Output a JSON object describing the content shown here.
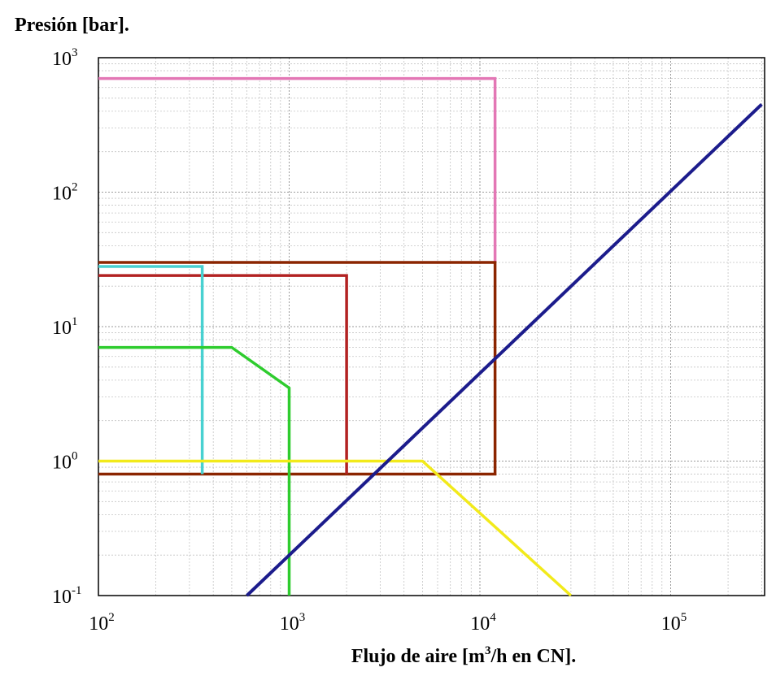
{
  "chart_data": {
    "type": "line",
    "ylabel": "Presión [bar].",
    "xlabel": "Flujo de aire [m3/h en CN].",
    "xscale": "log",
    "yscale": "log",
    "xlim": [
      100,
      300000
    ],
    "ylim": [
      0.1,
      1000
    ],
    "grid": true,
    "x_ticks": [
      {
        "base": "10",
        "exp": "2",
        "value": 100
      },
      {
        "base": "10",
        "exp": "3",
        "value": 1000
      },
      {
        "base": "10",
        "exp": "4",
        "value": 10000
      },
      {
        "base": "10",
        "exp": "5",
        "value": 100000
      }
    ],
    "y_ticks": [
      {
        "base": "10",
        "exp": "-1",
        "value": 0.1
      },
      {
        "base": "10",
        "exp": "0",
        "value": 1
      },
      {
        "base": "10",
        "exp": "1",
        "value": 10
      },
      {
        "base": "10",
        "exp": "2",
        "value": 100
      },
      {
        "base": "10",
        "exp": "3",
        "value": 1000
      }
    ],
    "series": [
      {
        "color": "#e377b5",
        "x": [
          100,
          12000,
          12000
        ],
        "y": [
          700,
          700,
          30
        ]
      },
      {
        "color": "#8b2500",
        "x": [
          100,
          12000,
          12000,
          100
        ],
        "y": [
          30,
          30,
          0.8,
          0.8
        ]
      },
      {
        "color": "#b22222",
        "x": [
          100,
          2000,
          2000
        ],
        "y": [
          24,
          24,
          0.8
        ]
      },
      {
        "color": "#48d1d1",
        "x": [
          100,
          350,
          350
        ],
        "y": [
          28,
          28,
          0.8
        ]
      },
      {
        "color": "#2ecc2e",
        "x": [
          100,
          500,
          1000,
          1000
        ],
        "y": [
          7,
          7,
          3.5,
          0.1
        ]
      },
      {
        "color": "#f2ea1a",
        "x": [
          100,
          5000,
          30000
        ],
        "y": [
          1,
          1,
          0.1
        ]
      },
      {
        "color": "#1c1c8c",
        "x": [
          600,
          300000
        ],
        "y": [
          0.1,
          450
        ]
      }
    ]
  }
}
